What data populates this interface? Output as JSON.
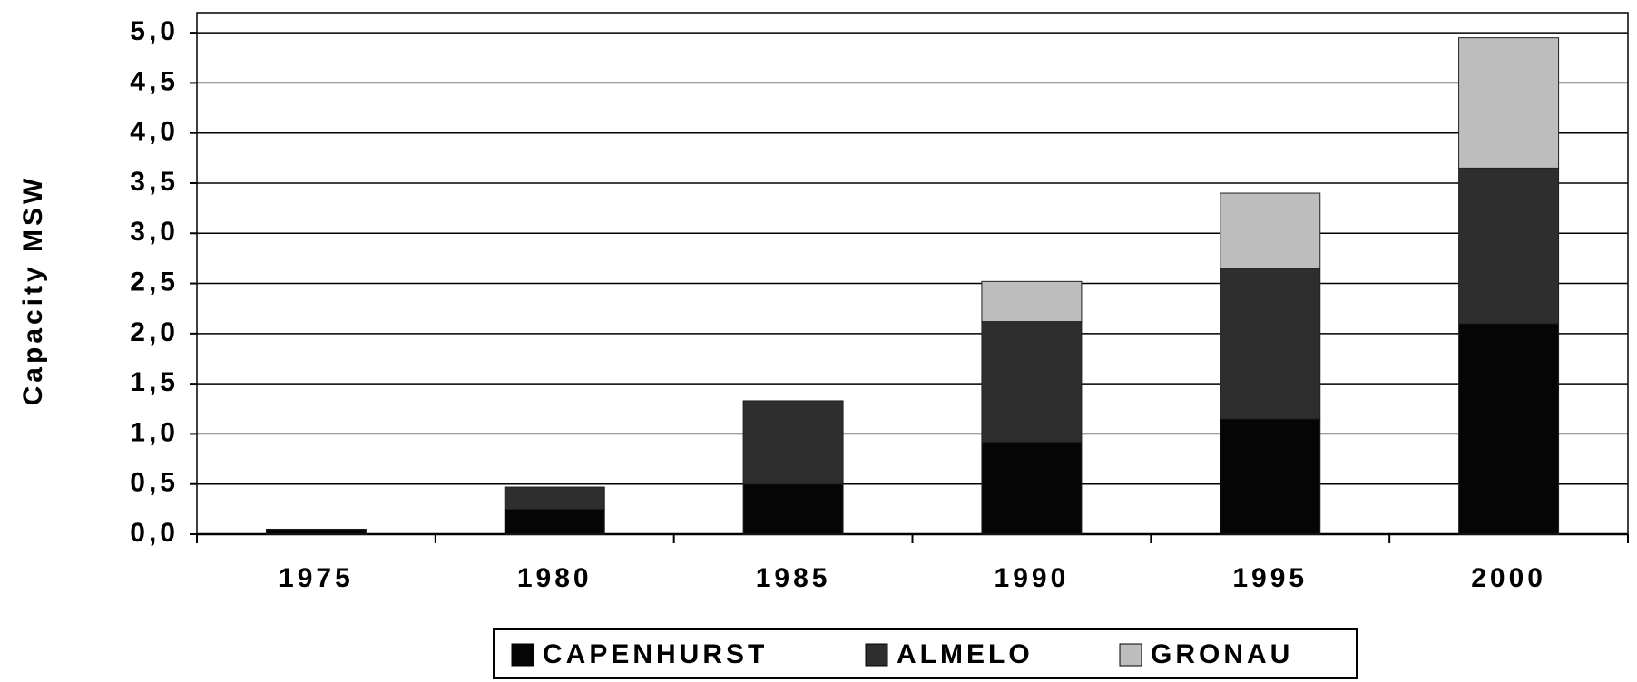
{
  "chart_data": {
    "type": "bar",
    "stacked": true,
    "y_label": "Capacity MSW",
    "categories": [
      "1975",
      "1980",
      "1985",
      "1990",
      "1995",
      "2000"
    ],
    "series": [
      {
        "name": "CAPENHURST",
        "color": "#050505",
        "values": [
          0.05,
          0.25,
          0.5,
          0.92,
          1.15,
          2.1
        ]
      },
      {
        "name": "ALMELO",
        "color": "#2e2e2e",
        "values": [
          0,
          0.22,
          0.83,
          1.2,
          1.5,
          1.55
        ]
      },
      {
        "name": "GRONAU",
        "color": "#bdbdbd",
        "values": [
          0,
          0,
          0,
          0.4,
          0.75,
          1.3
        ]
      }
    ],
    "ylim": [
      0,
      5.2
    ],
    "yticks": [
      {
        "value": 0,
        "label": "0,0"
      },
      {
        "value": 0.5,
        "label": "0,5"
      },
      {
        "value": 1,
        "label": "1,0"
      },
      {
        "value": 1.5,
        "label": "1,5"
      },
      {
        "value": 2,
        "label": "2,0"
      },
      {
        "value": 2.5,
        "label": "2,5"
      },
      {
        "value": 3,
        "label": "3,0"
      },
      {
        "value": 3.5,
        "label": "3,5"
      },
      {
        "value": 4,
        "label": "4,0"
      },
      {
        "value": 4.5,
        "label": "4,5"
      },
      {
        "value": 5,
        "label": "5,0"
      }
    ],
    "grid": true,
    "legend": "bottom"
  }
}
